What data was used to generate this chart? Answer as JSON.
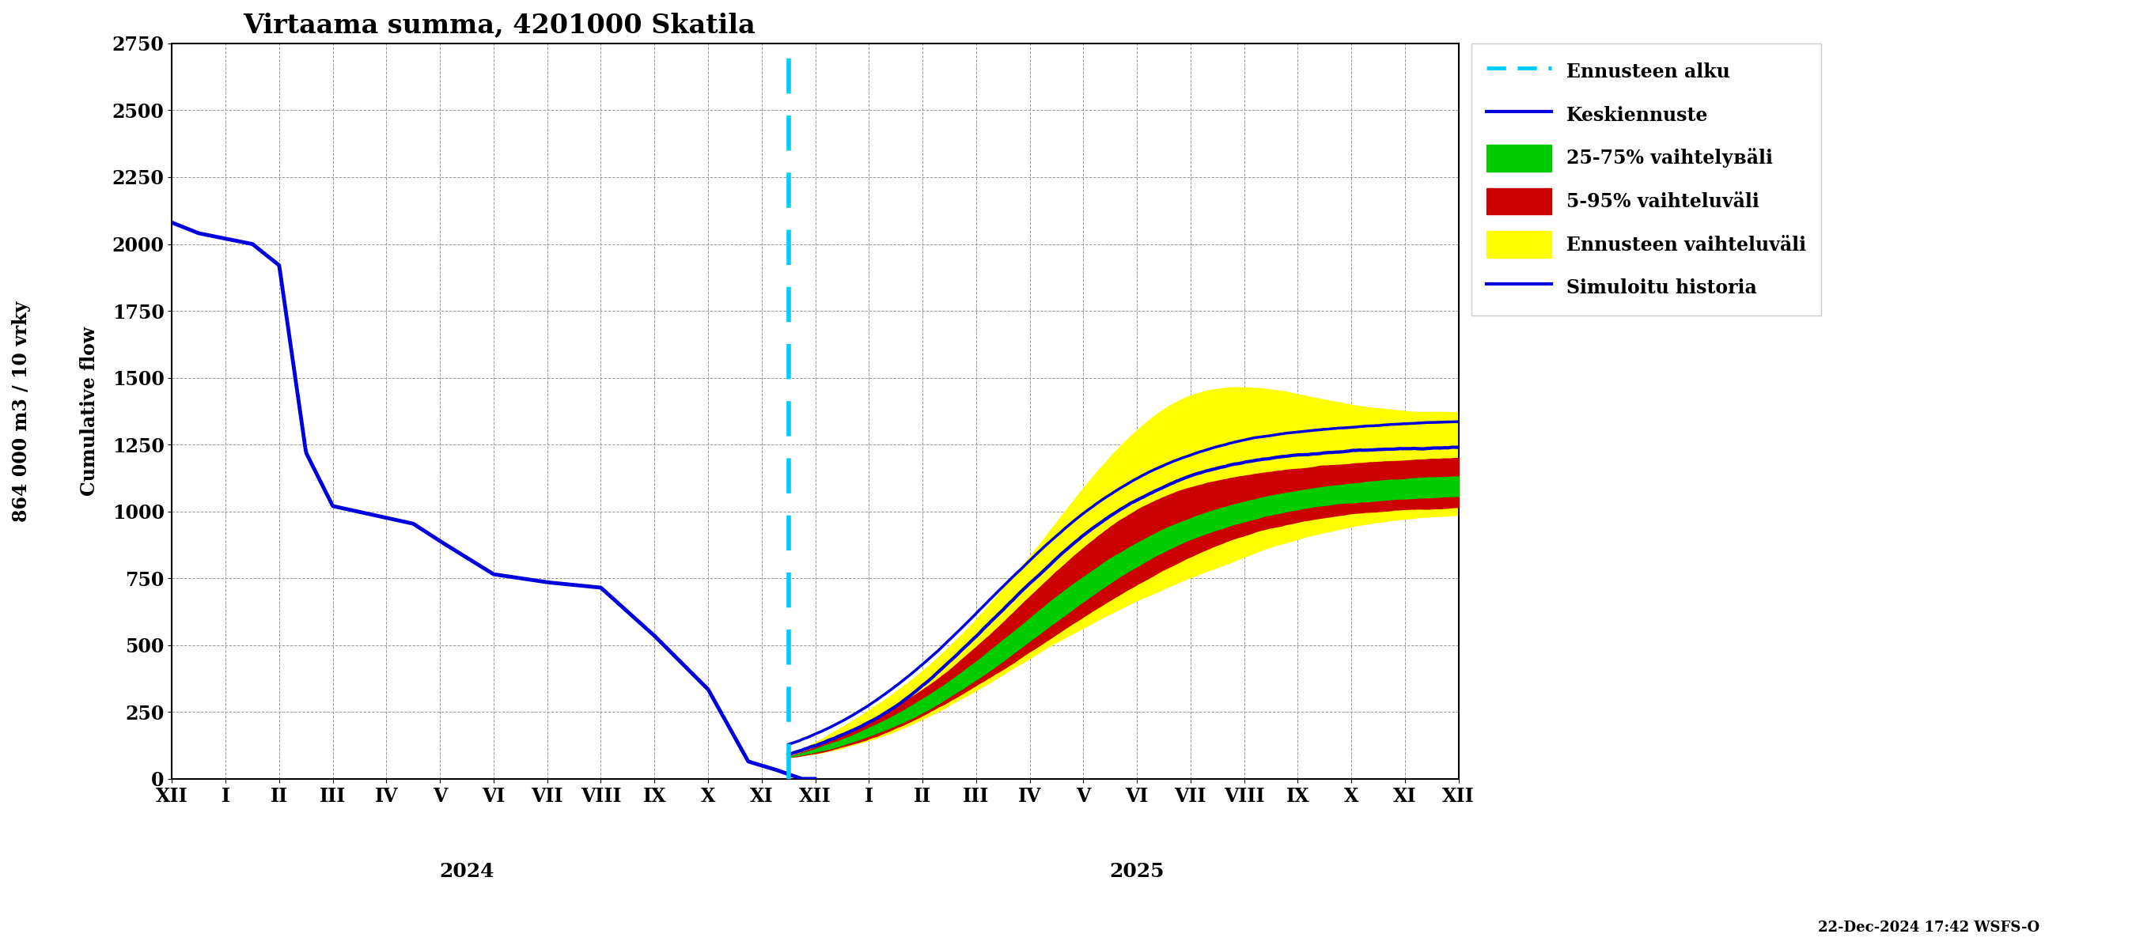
{
  "title": "Virtaama summa, 4201000 Skatila",
  "ylabel_line1": "864 000 m3 / 10 vrky",
  "ylabel_line2": "Cumulative flow",
  "ylim": [
    0,
    2750
  ],
  "yticks": [
    0,
    250,
    500,
    750,
    1000,
    1250,
    1500,
    1750,
    2000,
    2250,
    2500,
    2750
  ],
  "footnote": "22-Dec-2024 17:42 WSFS-O",
  "background_color": "#FFFFFF",
  "grid_color": "#999999",
  "months_2024": [
    "XII",
    "I",
    "II",
    "III",
    "IV",
    "V",
    "VI",
    "VII",
    "VIII",
    "IX",
    "X",
    "XI"
  ],
  "months_2025": [
    "XII",
    "I",
    "II",
    "III",
    "IV",
    "V",
    "VI",
    "VII",
    "VIII",
    "IX",
    "X",
    "XI",
    "XII"
  ],
  "month_positions_2024": [
    0,
    2,
    4,
    6,
    8,
    10,
    12,
    14,
    16,
    18,
    20,
    22
  ],
  "month_positions_2025": [
    24,
    26,
    28,
    30,
    32,
    34,
    36,
    38,
    40,
    42,
    44,
    46,
    48
  ],
  "hist_color": "#0000DD",
  "forecast_color": "#0000DD",
  "cyan_color": "#00CCFF",
  "green_color": "#00CC00",
  "red_color": "#CC0000",
  "yellow_color": "#FFFF00"
}
